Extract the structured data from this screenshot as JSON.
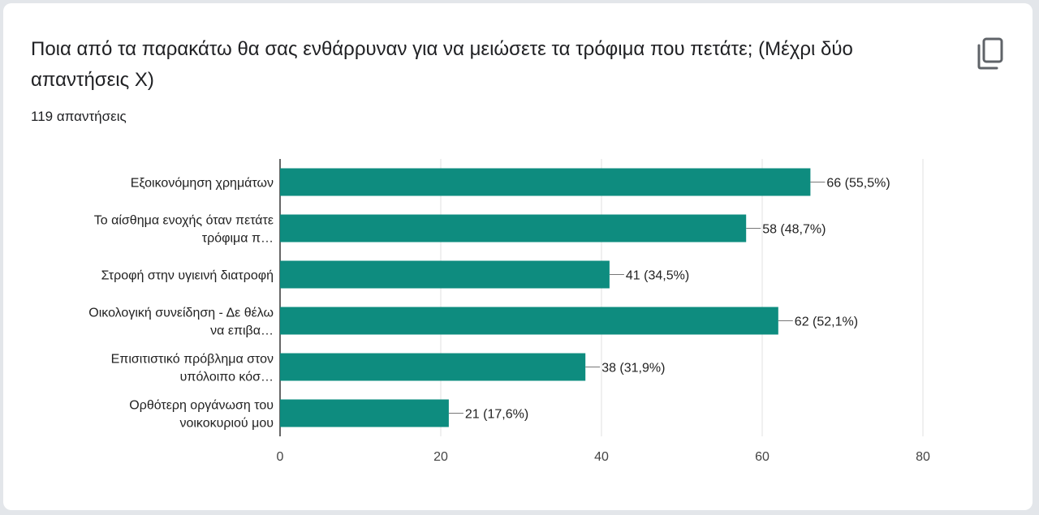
{
  "card": {
    "title": "Ποια από τα παρακάτω θα σας ενθάρρυναν για να μειώσετε τα τρόφιμα που πετάτε; (Μέχρι δύο απαντήσεις Χ)",
    "responses": "119 απαντήσεις",
    "copy_icon": "copy-icon"
  },
  "colors": {
    "bar": "#0e8c7f",
    "grid": "#e0e0e0",
    "axis": "#333333"
  },
  "chart_data": {
    "type": "bar",
    "orientation": "horizontal",
    "categories": [
      [
        "Εξοικονόμηση χρημάτων"
      ],
      [
        "Το αίσθημα ενοχής όταν πετάτε",
        "τρόφιμα π…"
      ],
      [
        "Στροφή στην υγιεινή διατροφή"
      ],
      [
        "Οικολογική συνείδηση - Δε θέλω",
        "να επιβα…"
      ],
      [
        "Επισιτιστικό πρόβλημα στον",
        "υπόλοιπο κόσ…"
      ],
      [
        "Ορθότερη οργάνωση του",
        "νοικοκυριού μου"
      ]
    ],
    "values": [
      66,
      58,
      41,
      62,
      38,
      21
    ],
    "value_labels": [
      "66 (55,5%)",
      "58 (48,7%)",
      "41 (34,5%)",
      "62 (52,1%)",
      "38 (31,9%)",
      "21 (17,6%)"
    ],
    "xlim": [
      0,
      80
    ],
    "xticks": [
      0,
      20,
      40,
      60,
      80
    ],
    "grid": true,
    "legend": "none"
  }
}
